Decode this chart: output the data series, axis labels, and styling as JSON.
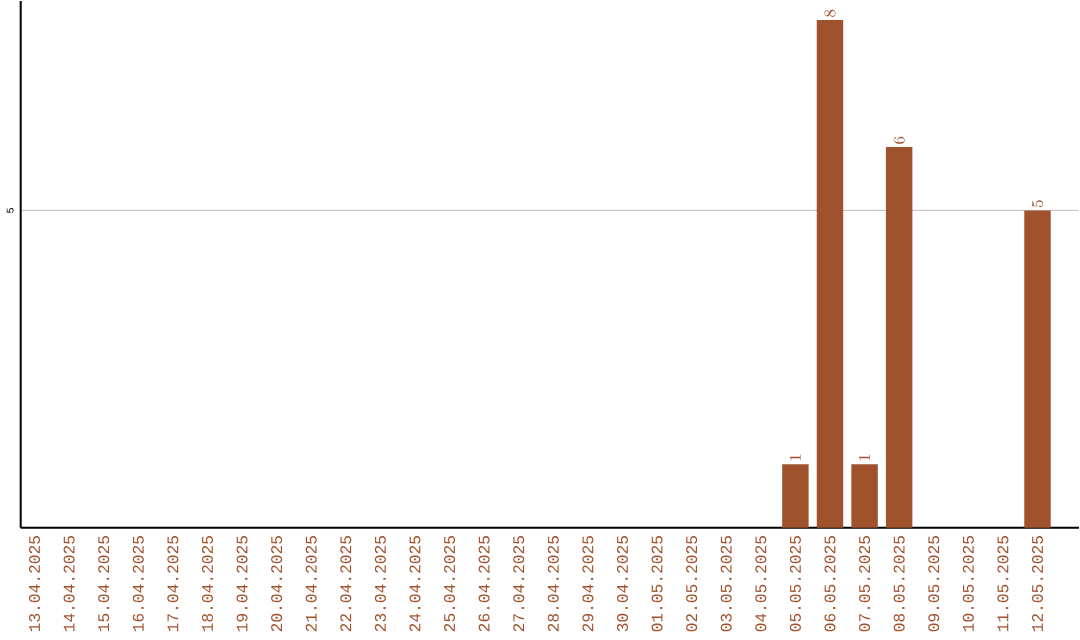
{
  "chart_data": {
    "type": "bar",
    "categories": [
      "13.04.2025",
      "14.04.2025",
      "15.04.2025",
      "16.04.2025",
      "17.04.2025",
      "18.04.2025",
      "19.04.2025",
      "20.04.2025",
      "21.04.2025",
      "22.04.2025",
      "23.04.2025",
      "24.04.2025",
      "25.04.2025",
      "26.04.2025",
      "27.04.2025",
      "28.04.2025",
      "29.04.2025",
      "30.04.2025",
      "01.05.2025",
      "02.05.2025",
      "03.05.2025",
      "04.05.2025",
      "05.05.2025",
      "06.05.2025",
      "07.05.2025",
      "08.05.2025",
      "09.05.2025",
      "10.05.2025",
      "11.05.2025",
      "12.05.2025"
    ],
    "values": [
      null,
      null,
      null,
      null,
      null,
      null,
      null,
      null,
      null,
      null,
      null,
      null,
      null,
      null,
      null,
      null,
      null,
      null,
      null,
      null,
      null,
      null,
      1,
      8,
      1,
      6,
      null,
      null,
      null,
      5
    ],
    "color": "#a0522d",
    "ylim": [
      0,
      8.3
    ],
    "yticks": [
      5
    ],
    "grid": "y",
    "data_labels": true
  }
}
